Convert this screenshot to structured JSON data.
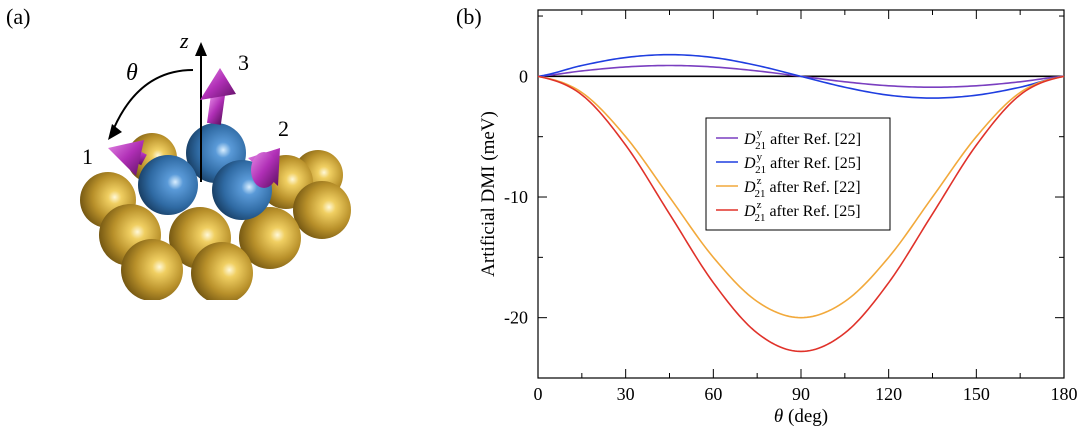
{
  "panels": {
    "a_label": "(a)",
    "b_label": "(b)"
  },
  "illustration": {
    "axis_label": "z",
    "angle_label": "θ",
    "atom_labels": [
      "1",
      "2",
      "3"
    ],
    "colors": {
      "substrate": "#b8902a",
      "magnetic": "#2f6aa3",
      "moment": "#b02fb6"
    }
  },
  "chart_data": {
    "type": "line",
    "xlabel_symbol": "θ",
    "xlabel_unit": "(deg)",
    "ylabel": "Artificial DMI (meV)",
    "xlim": [
      0,
      180
    ],
    "ylim": [
      -25,
      5.5
    ],
    "xticks": [
      0,
      30,
      60,
      90,
      120,
      150,
      180
    ],
    "yticks": [
      0,
      -10,
      -20
    ],
    "x": [
      0,
      15,
      30,
      45,
      60,
      75,
      90,
      105,
      120,
      135,
      150,
      165,
      180
    ],
    "series": [
      {
        "name_main": "D",
        "name_sup": "y",
        "name_sub": "21",
        "name_tail": " after Ref. [22]",
        "color": "#7a3fc0",
        "values": [
          0,
          0.45,
          0.78,
          0.9,
          0.78,
          0.45,
          0,
          -0.45,
          -0.78,
          -0.9,
          -0.78,
          -0.45,
          0
        ]
      },
      {
        "name_main": "D",
        "name_sup": "y",
        "name_sub": "21",
        "name_tail": " after Ref. [25]",
        "color": "#1f3ee0",
        "values": [
          0,
          0.9,
          1.56,
          1.8,
          1.56,
          0.9,
          0,
          -0.9,
          -1.56,
          -1.8,
          -1.56,
          -0.9,
          0
        ]
      },
      {
        "name_main": "D",
        "name_sup": "z",
        "name_sub": "21",
        "name_tail": " after Ref. [22]",
        "color": "#f2a93b",
        "values": [
          0,
          -1.34,
          -5.0,
          -10.0,
          -15.0,
          -18.66,
          -20.0,
          -18.66,
          -15.0,
          -10.0,
          -5.0,
          -1.34,
          0
        ]
      },
      {
        "name_main": "D",
        "name_sup": "z",
        "name_sub": "21",
        "name_tail": " after Ref. [25]",
        "color": "#e0322a",
        "values": [
          0,
          -1.53,
          -5.7,
          -11.4,
          -17.1,
          -21.27,
          -22.8,
          -21.27,
          -17.1,
          -11.4,
          -5.7,
          -1.53,
          0
        ]
      }
    ]
  }
}
